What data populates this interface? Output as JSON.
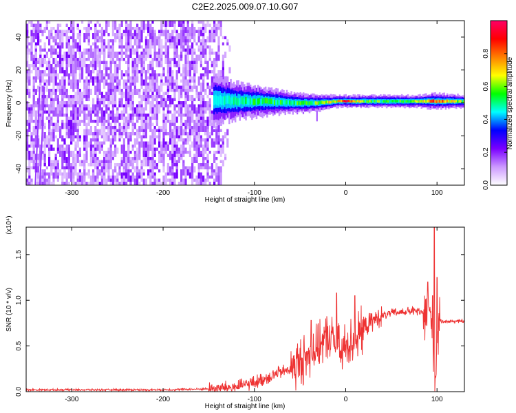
{
  "title": "C2E2.2025.009.07.10.G07",
  "chart_data": [
    {
      "type": "heatmap",
      "xlabel": "Height of straight line (km)",
      "ylabel": "Frequency (Hz)",
      "xlim": [
        -350,
        130
      ],
      "ylim": [
        -50,
        50
      ],
      "xticks": [
        -300,
        -200,
        -100,
        0,
        100
      ],
      "yticks": [
        -40,
        -20,
        0,
        20,
        40
      ],
      "colorbar": {
        "label": "Normalized spectral amplitude",
        "range": [
          0,
          1
        ],
        "ticks": [
          "0.0",
          "0.2",
          "0.4",
          "0.6",
          "0.8"
        ],
        "colormap": [
          "#ffffff",
          "#cc99ff",
          "#7a00ff",
          "#0000ff",
          "#00ffff",
          "#00ff00",
          "#ffff00",
          "#ff8000",
          "#ff0000",
          "#ff0066"
        ]
      },
      "noise_region": {
        "x_from": -350,
        "x_to": -145,
        "amplitude": 0.15
      },
      "ridge": [
        {
          "x": -145,
          "f": 2,
          "width": 12,
          "amp": 0.35
        },
        {
          "x": -120,
          "f": 1,
          "width": 9,
          "amp": 0.45
        },
        {
          "x": -90,
          "f": 1,
          "width": 7,
          "amp": 0.5
        },
        {
          "x": -60,
          "f": 0,
          "width": 5,
          "amp": 0.5
        },
        {
          "x": -30,
          "f": 0,
          "width": 4,
          "amp": 0.55
        },
        {
          "x": -10,
          "f": 1,
          "width": 3,
          "amp": 0.7
        },
        {
          "x": 0,
          "f": 1,
          "width": 3,
          "amp": 0.9
        },
        {
          "x": 20,
          "f": 1,
          "width": 3,
          "amp": 0.55
        },
        {
          "x": 50,
          "f": 1,
          "width": 3,
          "amp": 0.55
        },
        {
          "x": 80,
          "f": 1,
          "width": 3,
          "amp": 0.6
        },
        {
          "x": 95,
          "f": 1,
          "width": 4,
          "amp": 0.85
        },
        {
          "x": 130,
          "f": 1,
          "width": 3,
          "amp": 0.55
        }
      ]
    },
    {
      "type": "line",
      "xlabel": "Height of straight line (km)",
      "ylabel": "SNR (10 * v/v)",
      "y_multiplier": "(x10⁴)",
      "xlim": [
        -350,
        130
      ],
      "ylim": [
        0,
        1.8
      ],
      "xticks": [
        -300,
        -200,
        -100,
        0,
        100
      ],
      "yticks": [
        "0.0",
        "0.5",
        "1.0",
        "1.5"
      ],
      "color": "#ee3333",
      "series": [
        {
          "x": [
            -350,
            -300,
            -250,
            -200,
            -150,
            -120,
            -100,
            -80,
            -60,
            -40,
            -30,
            -20,
            -10,
            -5,
            0,
            10,
            20,
            30,
            40,
            50,
            60,
            70,
            80,
            85,
            90,
            95,
            98,
            100,
            102,
            105,
            110,
            120,
            130
          ],
          "y": [
            0.02,
            0.02,
            0.02,
            0.02,
            0.03,
            0.05,
            0.1,
            0.18,
            0.25,
            0.4,
            0.5,
            0.6,
            0.55,
            0.4,
            0.5,
            0.58,
            0.7,
            0.78,
            0.83,
            0.86,
            0.87,
            0.88,
            0.88,
            0.85,
            0.9,
            0.75,
            0.1,
            0.5,
            0.78,
            0.77,
            0.77,
            0.77,
            0.77
          ],
          "spikes": [
            {
              "x": -10,
              "y": 1.08
            },
            {
              "x": 10,
              "y": 1.05
            },
            {
              "x": -38,
              "y": 0.78
            },
            {
              "x": 90,
              "y": 1.2
            },
            {
              "x": 95,
              "y": 1.05
            },
            {
              "x": 97,
              "y": 1.8
            },
            {
              "x": 100,
              "y": 1.25
            }
          ]
        }
      ]
    }
  ]
}
